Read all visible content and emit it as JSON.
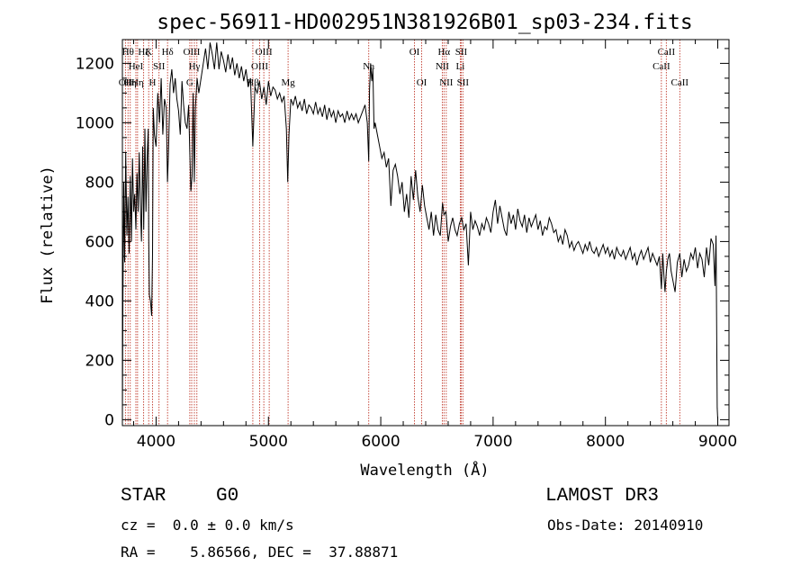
{
  "chart_data": {
    "type": "line",
    "title": "spec-56911-HD002951N381926B01_sp03-234.fits",
    "xlabel": "Wavelength (Å)",
    "ylabel": "Flux (relative)",
    "xlim": [
      3700,
      9100
    ],
    "ylim": [
      -20,
      1280
    ],
    "x_ticks": [
      4000,
      5000,
      6000,
      7000,
      8000,
      9000
    ],
    "y_ticks": [
      0,
      200,
      400,
      600,
      800,
      1000,
      1200
    ],
    "x_tick_labels": [
      "4000",
      "5000",
      "6000",
      "7000",
      "8000",
      "9000"
    ],
    "y_tick_labels": [
      "0",
      "200",
      "400",
      "600",
      "800",
      "1000",
      "1200"
    ],
    "series": [
      {
        "name": "flux",
        "x": [
          3700,
          3705,
          3712,
          3720,
          3730,
          3740,
          3750,
          3760,
          3770,
          3780,
          3790,
          3800,
          3810,
          3820,
          3830,
          3840,
          3850,
          3860,
          3870,
          3880,
          3890,
          3900,
          3910,
          3920,
          3930,
          3935,
          3940,
          3950,
          3960,
          3968,
          3975,
          3985,
          4000,
          4015,
          4030,
          4045,
          4060,
          4075,
          4090,
          4101,
          4110,
          4125,
          4140,
          4155,
          4170,
          4185,
          4200,
          4215,
          4230,
          4245,
          4260,
          4275,
          4290,
          4300,
          4310,
          4320,
          4330,
          4340,
          4350,
          4365,
          4380,
          4400,
          4420,
          4440,
          4460,
          4480,
          4500,
          4520,
          4540,
          4560,
          4580,
          4600,
          4620,
          4640,
          4660,
          4680,
          4700,
          4720,
          4740,
          4760,
          4780,
          4800,
          4820,
          4840,
          4861,
          4880,
          4900,
          4920,
          4940,
          4960,
          4980,
          5000,
          5020,
          5040,
          5060,
          5080,
          5100,
          5120,
          5140,
          5160,
          5172,
          5183,
          5200,
          5220,
          5240,
          5260,
          5280,
          5300,
          5320,
          5340,
          5360,
          5380,
          5400,
          5420,
          5440,
          5460,
          5480,
          5500,
          5520,
          5540,
          5560,
          5580,
          5600,
          5620,
          5640,
          5660,
          5680,
          5700,
          5720,
          5740,
          5760,
          5780,
          5800,
          5820,
          5840,
          5860,
          5880,
          5893,
          5900,
          5910,
          5920,
          5930,
          5940,
          5950,
          5970,
          5990,
          6010,
          6030,
          6050,
          6070,
          6090,
          6110,
          6130,
          6150,
          6170,
          6190,
          6210,
          6230,
          6250,
          6270,
          6290,
          6310,
          6330,
          6350,
          6370,
          6390,
          6410,
          6430,
          6450,
          6470,
          6490,
          6510,
          6530,
          6550,
          6563,
          6580,
          6600,
          6620,
          6640,
          6660,
          6680,
          6700,
          6720,
          6740,
          6760,
          6780,
          6800,
          6820,
          6840,
          6860,
          6880,
          6900,
          6920,
          6940,
          6960,
          6980,
          7000,
          7020,
          7040,
          7060,
          7080,
          7100,
          7120,
          7140,
          7160,
          7180,
          7200,
          7220,
          7240,
          7260,
          7280,
          7300,
          7320,
          7340,
          7360,
          7380,
          7400,
          7420,
          7440,
          7460,
          7480,
          7500,
          7520,
          7540,
          7560,
          7580,
          7600,
          7620,
          7640,
          7660,
          7680,
          7700,
          7720,
          7740,
          7760,
          7780,
          7800,
          7820,
          7840,
          7860,
          7880,
          7900,
          7920,
          7940,
          7960,
          7980,
          8000,
          8020,
          8040,
          8060,
          8080,
          8100,
          8120,
          8140,
          8160,
          8180,
          8200,
          8220,
          8240,
          8260,
          8280,
          8300,
          8320,
          8340,
          8360,
          8380,
          8400,
          8420,
          8440,
          8460,
          8480,
          8498,
          8510,
          8520,
          8530,
          8542,
          8555,
          8570,
          8585,
          8600,
          8620,
          8640,
          8662,
          8680,
          8700,
          8720,
          8740,
          8760,
          8780,
          8800,
          8820,
          8840,
          8860,
          8880,
          8900,
          8920,
          8940,
          8960,
          8975,
          8985,
          8995,
          9000
        ],
        "y": [
          0,
          420,
          800,
          530,
          900,
          620,
          750,
          560,
          820,
          600,
          880,
          700,
          760,
          640,
          830,
          700,
          900,
          720,
          600,
          920,
          640,
          980,
          700,
          880,
          980,
          600,
          420,
          400,
          350,
          560,
          1050,
          960,
          920,
          1100,
          1000,
          1150,
          960,
          1080,
          1050,
          800,
          900,
          1130,
          1180,
          1100,
          1150,
          1080,
          1040,
          960,
          1140,
          1060,
          1000,
          980,
          1060,
          900,
          770,
          820,
          1100,
          800,
          1050,
          1150,
          1100,
          1150,
          1200,
          1250,
          1180,
          1270,
          1230,
          1180,
          1270,
          1180,
          1240,
          1210,
          1170,
          1230,
          1180,
          1220,
          1160,
          1200,
          1150,
          1190,
          1140,
          1180,
          1120,
          1150,
          920,
          1120,
          1100,
          1140,
          1080,
          1120,
          1060,
          1140,
          1090,
          1120,
          1110,
          1080,
          1100,
          1070,
          1090,
          980,
          800,
          960,
          1080,
          1060,
          1090,
          1050,
          1070,
          1040,
          1080,
          1030,
          1060,
          1050,
          1030,
          1070,
          1030,
          1050,
          1020,
          1060,
          1010,
          1050,
          1020,
          1040,
          1000,
          1040,
          1020,
          1030,
          1000,
          1040,
          1010,
          1030,
          1010,
          1030,
          1000,
          1020,
          1040,
          1060,
          1000,
          870,
          1110,
          1200,
          1140,
          1180,
          980,
          1000,
          960,
          920,
          880,
          900,
          850,
          880,
          720,
          840,
          860,
          820,
          760,
          800,
          700,
          760,
          680,
          820,
          740,
          840,
          750,
          700,
          790,
          720,
          680,
          640,
          700,
          620,
          690,
          640,
          620,
          730,
          690,
          700,
          600,
          650,
          680,
          640,
          620,
          660,
          680,
          640,
          660,
          520,
          700,
          640,
          670,
          650,
          620,
          660,
          640,
          680,
          660,
          630,
          700,
          740,
          660,
          720,
          680,
          640,
          620,
          700,
          660,
          690,
          640,
          710,
          670,
          650,
          690,
          630,
          680,
          650,
          670,
          690,
          640,
          670,
          620,
          650,
          640,
          680,
          660,
          630,
          640,
          600,
          620,
          590,
          640,
          620,
          580,
          600,
          570,
          590,
          600,
          580,
          560,
          590,
          570,
          600,
          570,
          560,
          580,
          550,
          570,
          590,
          560,
          580,
          550,
          570,
          540,
          580,
          560,
          550,
          570,
          540,
          560,
          580,
          540,
          560,
          520,
          550,
          570,
          540,
          560,
          580,
          530,
          560,
          540,
          520,
          550,
          440,
          560,
          490,
          430,
          500,
          540,
          560,
          500,
          470,
          430,
          530,
          560,
          480,
          540,
          500,
          520,
          560,
          540,
          580,
          510,
          560,
          540,
          480,
          580,
          520,
          610,
          590,
          450,
          620,
          40,
          0
        ]
      }
    ],
    "lines": [
      {
        "x": 3727,
        "label": "OII",
        "row": 2
      },
      {
        "x": 3750,
        "label": "Hθ",
        "row": 0
      },
      {
        "x": 3770,
        "label": "Hη",
        "row": 2
      },
      {
        "x": 3820,
        "label": "HeI",
        "row": 1
      },
      {
        "x": 3835,
        "label": "Hη",
        "row": 2
      },
      {
        "x": 3889,
        "label": "Hζ",
        "row": 0
      },
      {
        "x": 3934,
        "label": "K",
        "row": 0
      },
      {
        "x": 3968,
        "label": "H",
        "row": 2
      },
      {
        "x": 4026,
        "label": "SII",
        "row": 1
      },
      {
        "x": 4102,
        "label": "Hδ",
        "row": 0
      },
      {
        "x": 4300,
        "label": "G",
        "row": 2
      },
      {
        "x": 4317,
        "label": "OIII",
        "row": 0
      },
      {
        "x": 4341,
        "label": "Hγ",
        "row": 1
      },
      {
        "x": 4363,
        "label": "",
        "row": 0
      },
      {
        "x": 4861,
        "label": "Hβ",
        "row": 2
      },
      {
        "x": 4922,
        "label": "OIII",
        "row": 1
      },
      {
        "x": 4959,
        "label": "OIII",
        "row": 0
      },
      {
        "x": 5007,
        "label": "",
        "row": 0
      },
      {
        "x": 5175,
        "label": "Mg",
        "row": 2
      },
      {
        "x": 5893,
        "label": "Na",
        "row": 1
      },
      {
        "x": 6300,
        "label": "OI",
        "row": 0
      },
      {
        "x": 6364,
        "label": "OI",
        "row": 2
      },
      {
        "x": 6548,
        "label": "NII",
        "row": 1
      },
      {
        "x": 6563,
        "label": "Hα",
        "row": 0
      },
      {
        "x": 6583,
        "label": "NII",
        "row": 2
      },
      {
        "x": 6708,
        "label": "Li",
        "row": 1
      },
      {
        "x": 6716,
        "label": "SII",
        "row": 0
      },
      {
        "x": 6731,
        "label": "SII",
        "row": 2
      },
      {
        "x": 8498,
        "label": "CaII",
        "row": 1
      },
      {
        "x": 8542,
        "label": "CaII",
        "row": 0
      },
      {
        "x": 8662,
        "label": "CaII",
        "row": 2
      }
    ]
  },
  "info": {
    "class_label": "STAR",
    "subclass": "G0",
    "survey": "LAMOST DR3",
    "redshift_text": "cz =  0.0 ± 0.0 km/s",
    "obs_date_text": "Obs-Date: 20140910",
    "coord_text": "RA =    5.86566, DEC =  37.88871"
  },
  "colors": {
    "spectrum": "#000000",
    "line_marker": "#c0392b",
    "axes": "#000000"
  }
}
